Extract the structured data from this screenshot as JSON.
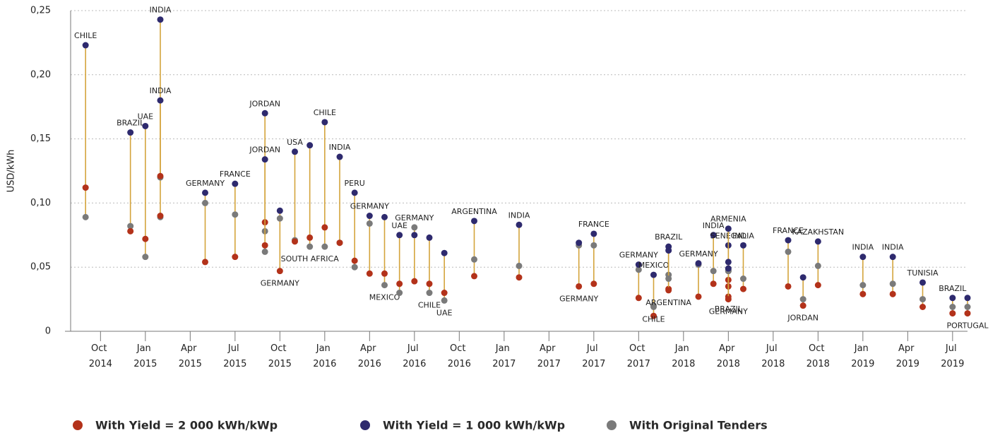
{
  "chart_data": {
    "type": "dumbbell",
    "y_label": "USD/kWh",
    "x": [
      "2014-09",
      "2014-12",
      "2015-01",
      "2015-02",
      "2015-02",
      "2015-05",
      "2015-07",
      "2015-09",
      "2015-09",
      "2015-10",
      "2015-11",
      "2015-12",
      "2016-01",
      "2016-02",
      "2016-03",
      "2016-04",
      "2016-05",
      "2016-06",
      "2016-07",
      "2016-08",
      "2016-09",
      "2016-11",
      "2017-02",
      "2017-06",
      "2017-07",
      "2017-10",
      "2017-11",
      "2017-11",
      "2017-12",
      "2017-12",
      "2018-02",
      "2018-03",
      "2018-04",
      "2018-04",
      "2018-04",
      "2018-04",
      "2018-05",
      "2018-08",
      "2018-09",
      "2018-10",
      "2019-01",
      "2019-03",
      "2019-05",
      "2019-07",
      "2019-08"
    ],
    "labels": [
      "CHILE",
      "BRAZIL",
      "UAE",
      "INDIA",
      "INDIA",
      "GERMANY",
      "FRANCE",
      "JORDAN",
      "JORDAN",
      "GERMANY",
      "USA",
      "SOUTH AFRICA",
      "CHILE",
      "INDIA",
      "PERU",
      "GERMANY",
      "MEXICO",
      "UAE",
      "GERMANY",
      "CHILE",
      "UAE",
      "ARGENTINA",
      "INDIA",
      "GERMANY",
      "FRANCE",
      "GERMANY",
      "MEXICO",
      "CHILE",
      "BRAZIL",
      "ARGENTINA",
      "GERMANY",
      "INDIA",
      "SENEGAL",
      "ARMENIA",
      "BRAZIL",
      "GERMANY",
      "INDIA",
      "FRANCE",
      "JORDAN",
      "KAZAKHSTAN",
      "INDIA",
      "INDIA",
      "TUNISIA",
      "BRAZIL",
      "PORTUGAL"
    ],
    "series": [
      {
        "name": "With Yield = 2 000 kWh/kWp",
        "color": "#b3321a",
        "values": [
          0.112,
          0.078,
          0.072,
          0.09,
          0.121,
          0.054,
          0.058,
          0.085,
          0.067,
          0.047,
          0.07,
          0.073,
          0.081,
          0.069,
          0.055,
          0.045,
          0.045,
          0.037,
          0.039,
          0.037,
          0.03,
          0.043,
          0.042,
          0.035,
          0.037,
          0.026,
          0.012,
          null,
          0.033,
          0.032,
          0.027,
          0.037,
          0.035,
          0.04,
          0.027,
          0.025,
          0.033,
          0.035,
          0.02,
          0.036,
          0.029,
          0.029,
          0.019,
          0.014,
          0.014
        ]
      },
      {
        "name": "With Yield = 1 000 kWh/kWp",
        "color": "#2e2a6e",
        "values": [
          0.223,
          0.155,
          0.16,
          0.243,
          0.18,
          0.108,
          0.115,
          0.17,
          0.134,
          0.094,
          0.14,
          0.145,
          0.163,
          0.136,
          0.108,
          0.09,
          0.089,
          0.075,
          0.075,
          0.073,
          0.061,
          0.086,
          0.083,
          0.069,
          0.076,
          0.052,
          0.044,
          null,
          0.066,
          0.063,
          0.053,
          0.075,
          0.067,
          0.08,
          0.054,
          0.049,
          0.067,
          0.071,
          0.042,
          0.07,
          0.058,
          0.058,
          0.038,
          0.026,
          0.026
        ]
      },
      {
        "name": "With Original Tenders",
        "color": "#7a7a7a",
        "values": [
          0.089,
          0.082,
          0.058,
          0.089,
          0.12,
          0.1,
          0.091,
          0.078,
          0.062,
          0.088,
          0.071,
          0.066,
          0.066,
          0.069,
          0.05,
          0.084,
          0.036,
          0.03,
          0.081,
          0.03,
          0.024,
          0.056,
          0.051,
          0.067,
          0.067,
          0.048,
          0.02,
          0.019,
          0.044,
          0.041,
          0.052,
          0.047,
          0.047,
          0.047,
          0.048,
          0.047,
          0.041,
          0.062,
          0.025,
          0.051,
          0.036,
          0.037,
          0.025,
          0.019,
          0.019
        ]
      }
    ],
    "xlim": [
      "2014-08",
      "2019-08"
    ],
    "xticks": [
      {
        "value": "2014-10",
        "label": "Oct 2014"
      },
      {
        "value": "2015-01",
        "label": "Jan 2015"
      },
      {
        "value": "2015-04",
        "label": "Apr 2015"
      },
      {
        "value": "2015-07",
        "label": "Jul 2015"
      },
      {
        "value": "2015-10",
        "label": "Oct 2015"
      },
      {
        "value": "2016-01",
        "label": "Jan 2016"
      },
      {
        "value": "2016-04",
        "label": "Apr 2016"
      },
      {
        "value": "2016-07",
        "label": "Jul 2016"
      },
      {
        "value": "2016-10",
        "label": "Oct 2016"
      },
      {
        "value": "2017-01",
        "label": "Jan 2017"
      },
      {
        "value": "2017-04",
        "label": "Apr 2017"
      },
      {
        "value": "2017-07",
        "label": "Jul 2017"
      },
      {
        "value": "2017-10",
        "label": "Oct 2017"
      },
      {
        "value": "2018-01",
        "label": "Jan 2018"
      },
      {
        "value": "2018-04",
        "label": "Apr 2018"
      },
      {
        "value": "2018-07",
        "label": "Jul 2018"
      },
      {
        "value": "2018-10",
        "label": "Oct 2018"
      },
      {
        "value": "2019-01",
        "label": "Jan 2019"
      },
      {
        "value": "2019-04",
        "label": "Apr 2019"
      },
      {
        "value": "2019-07",
        "label": "Jul 2019"
      }
    ],
    "ylim": [
      0,
      0.25
    ],
    "yticks": [
      0,
      {
        "value": 0.05,
        "label": "0,05"
      },
      {
        "value": 0.1,
        "label": "0,10"
      },
      {
        "value": 0.15,
        "label": "0,15"
      },
      {
        "value": 0.2,
        "label": "0,20"
      },
      {
        "value": 0.25,
        "label": "0,25"
      }
    ],
    "grid": true,
    "connector_color": "#d4a43c",
    "legend": "bottom"
  }
}
